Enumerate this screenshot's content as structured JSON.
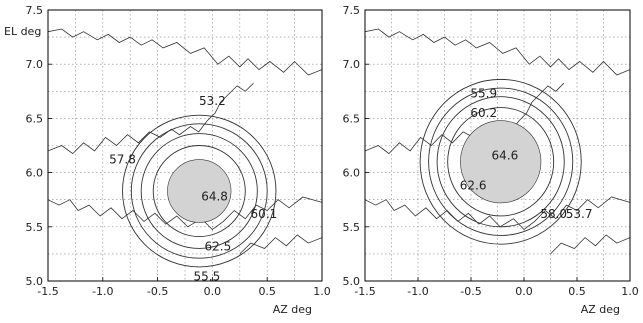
{
  "chart_data": [
    {
      "type": "contour",
      "title": "",
      "xlabel": "AZ deg",
      "ylabel": "EL deg",
      "xlim": [
        -1.5,
        1.0
      ],
      "ylim": [
        5.0,
        7.5
      ],
      "xticks": [
        "-1.5",
        "-1.0",
        "-0.5",
        "0.0",
        "0.5",
        "1.0"
      ],
      "yticks": [
        "5.0",
        "5.5",
        "6.0",
        "6.5",
        "7.0",
        "7.5"
      ],
      "grid": true,
      "beam_center": {
        "x": -0.12,
        "y": 5.83
      },
      "core_radius_deg": 0.29,
      "contour_rings_deg": [
        0.42,
        0.53,
        0.62,
        0.7
      ],
      "contour_labels": [
        {
          "text": "64.8",
          "x": 0.02,
          "y": 5.78
        },
        {
          "text": "62.5",
          "x": 0.05,
          "y": 5.32
        },
        {
          "text": "60.1",
          "x": 0.47,
          "y": 5.62
        },
        {
          "text": "57.8",
          "x": -0.82,
          "y": 6.12
        },
        {
          "text": "55.5",
          "x": -0.05,
          "y": 5.04
        },
        {
          "text": "53.2",
          "x": 0.0,
          "y": 6.66
        }
      ]
    },
    {
      "type": "contour",
      "title": "",
      "xlabel": "AZ deg",
      "ylabel": "",
      "xlim": [
        -1.5,
        1.0
      ],
      "ylim": [
        5.0,
        7.5
      ],
      "xticks": [
        "-1.5",
        "-1.0",
        "-0.5",
        "0.0",
        "0.5",
        "1.0"
      ],
      "yticks": [
        "5.0",
        "5.5",
        "6.0",
        "6.5",
        "7.0",
        "7.5"
      ],
      "grid": true,
      "beam_center": {
        "x": -0.22,
        "y": 6.1
      },
      "core_radius_deg": 0.38,
      "contour_rings_deg": [
        0.5,
        0.6,
        0.68,
        0.76
      ],
      "contour_labels": [
        {
          "text": "64.6",
          "x": -0.18,
          "y": 6.16
        },
        {
          "text": "62.6",
          "x": -0.48,
          "y": 5.88
        },
        {
          "text": "60.2",
          "x": -0.38,
          "y": 6.55
        },
        {
          "text": "58.0",
          "x": 0.28,
          "y": 5.62
        },
        {
          "text": "55.9",
          "x": -0.38,
          "y": 6.73
        },
        {
          "text": "53.7",
          "x": 0.52,
          "y": 5.62
        }
      ]
    }
  ],
  "colors": {
    "core_fill": "#d3d3d3",
    "line": "#333333",
    "grid": "#888888"
  }
}
